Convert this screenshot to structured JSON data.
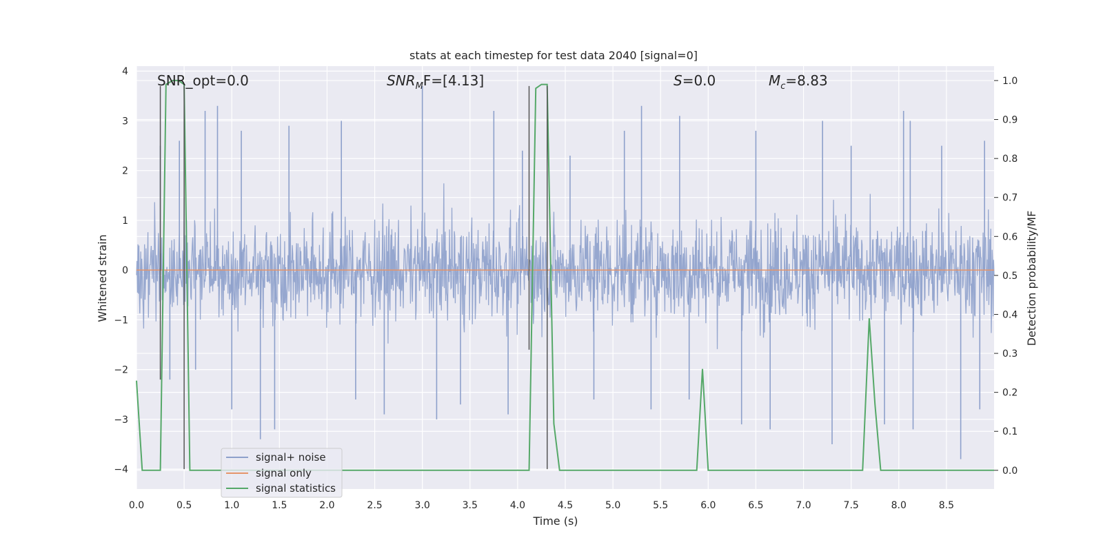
{
  "chart_data": {
    "type": "line",
    "title": "stats at each timestep for test data 2040 [signal=0]",
    "xlabel": "Time (s)",
    "ylabel": "Whitened strain",
    "ylabel_right": "Detection probability/MF",
    "xlim": [
      0,
      9.0
    ],
    "ylim": [
      -4.4,
      4.1
    ],
    "ylim_right": [
      -0.048,
      1.037
    ],
    "x_ticks": [
      "0.0",
      "0.5",
      "1.0",
      "1.5",
      "2.0",
      "2.5",
      "3.0",
      "3.5",
      "4.0",
      "4.5",
      "5.0",
      "5.5",
      "6.0",
      "6.5",
      "7.0",
      "7.5",
      "8.0",
      "8.5"
    ],
    "y_ticks": [
      "−4",
      "−3",
      "−2",
      "−1",
      "0",
      "1",
      "2",
      "3",
      "4"
    ],
    "y_ticks_right": [
      "0.0",
      "0.1",
      "0.2",
      "0.3",
      "0.4",
      "0.5",
      "0.6",
      "0.7",
      "0.8",
      "0.9",
      "1.0"
    ],
    "grid": true,
    "legend_position": "lower-left",
    "annotations": {
      "snr_opt": "SNR_opt=0.0",
      "snr_mf": "SNR",
      "snr_mf_sub": "M",
      "snr_mf_tail": "F=[4.13]",
      "s_var": "S",
      "s_val": "=0.0",
      "mc_var": "M",
      "mc_sub": "c",
      "mc_val": "=8.83"
    },
    "series": [
      {
        "name": "signal+ noise",
        "color": "#8da0cb",
        "envelope_note": "whitened noise oscillating roughly between -2 and 2 with peaks",
        "peaks": [
          [
            0.25,
            2.5
          ],
          [
            0.45,
            2.6
          ],
          [
            0.72,
            3.2
          ],
          [
            0.85,
            3.3
          ],
          [
            1.1,
            2.8
          ],
          [
            1.6,
            2.9
          ],
          [
            2.15,
            3.0
          ],
          [
            3.0,
            3.7
          ],
          [
            3.75,
            3.2
          ],
          [
            4.05,
            2.4
          ],
          [
            4.55,
            2.3
          ],
          [
            5.12,
            2.8
          ],
          [
            5.3,
            3.3
          ],
          [
            5.7,
            3.1
          ],
          [
            6.5,
            2.8
          ],
          [
            7.2,
            3.0
          ],
          [
            7.5,
            2.5
          ],
          [
            8.05,
            3.2
          ],
          [
            8.12,
            3.0
          ],
          [
            8.45,
            2.5
          ],
          [
            8.9,
            2.6
          ]
        ],
        "troughs": [
          [
            0.35,
            -2.2
          ],
          [
            0.62,
            -2.0
          ],
          [
            1.0,
            -2.8
          ],
          [
            1.3,
            -3.4
          ],
          [
            1.45,
            -3.2
          ],
          [
            2.3,
            -2.6
          ],
          [
            2.6,
            -2.9
          ],
          [
            3.15,
            -3.0
          ],
          [
            3.4,
            -2.7
          ],
          [
            3.9,
            -2.9
          ],
          [
            4.8,
            -2.6
          ],
          [
            5.4,
            -2.8
          ],
          [
            5.8,
            -2.6
          ],
          [
            6.35,
            -3.1
          ],
          [
            6.65,
            -3.2
          ],
          [
            7.3,
            -3.5
          ],
          [
            7.85,
            -3.1
          ],
          [
            8.15,
            -3.2
          ],
          [
            8.65,
            -3.8
          ],
          [
            8.85,
            -2.8
          ]
        ]
      },
      {
        "name": "signal only",
        "color": "#e59469",
        "x": [
          0.0,
          9.0
        ],
        "y": [
          0.0,
          0.0
        ]
      },
      {
        "name": "signal statistics",
        "color": "#55a868",
        "axis": "right",
        "x": [
          0.0,
          0.06,
          0.25,
          0.31,
          0.38,
          0.44,
          0.5,
          0.56,
          4.12,
          4.19,
          4.25,
          4.31,
          4.38,
          4.44,
          4.5,
          5.88,
          5.94,
          6.0,
          7.62,
          7.69,
          7.75,
          7.81,
          9.0
        ],
        "y": [
          0.23,
          0.0,
          0.0,
          0.99,
          1.0,
          1.0,
          0.99,
          0.0,
          0.0,
          0.98,
          0.99,
          0.99,
          0.12,
          0.0,
          0.0,
          0.0,
          0.26,
          0.0,
          0.0,
          0.39,
          0.17,
          0.0,
          0.0
        ]
      }
    ],
    "vertical_markers": [
      {
        "x": 0.25,
        "y_top": 3.7,
        "y_bottom": -2.2
      },
      {
        "x": 0.5,
        "y_top": 3.7,
        "y_bottom": -4.0
      },
      {
        "x": 4.12,
        "y_top": 3.7,
        "y_bottom": -1.6
      },
      {
        "x": 4.31,
        "y_top": 3.7,
        "y_bottom": -4.0
      }
    ]
  }
}
